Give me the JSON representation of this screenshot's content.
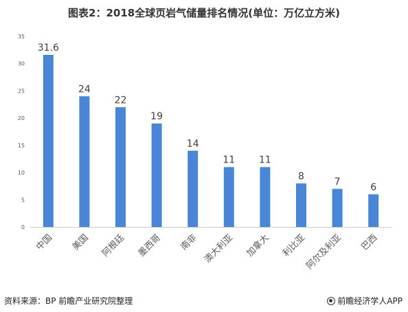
{
  "title": "图表2：2018全球页岩气储量排名情况(单位：万亿立方米)",
  "source": "资料来源：BP 前瞻产业研究院整理",
  "brand": "前瞻经济学人APP",
  "colors": {
    "bar": "#4A86D8",
    "axis": "#cccccc",
    "tick_text": "#595959",
    "label_text": "#404040"
  },
  "chart_data": {
    "type": "bar",
    "title": "图表2：2018全球页岩气储量排名情况(单位：万亿立方米)",
    "xlabel": "",
    "ylabel": "",
    "categories": [
      "中国",
      "美国",
      "阿根廷",
      "墨西哥",
      "南非",
      "澳大利亚",
      "加拿大",
      "利比亚",
      "阿尔及利亚",
      "巴西"
    ],
    "values": [
      31.6,
      24,
      22,
      19,
      14,
      11,
      11,
      8,
      7,
      6
    ],
    "value_labels": [
      "31.6",
      "24",
      "22",
      "19",
      "14",
      "11",
      "11",
      "8",
      "7",
      "6"
    ],
    "ylim": [
      0,
      35
    ],
    "yticks": [
      0,
      5,
      10,
      15,
      20,
      25,
      30,
      35
    ],
    "grid": false,
    "legend": "none"
  }
}
